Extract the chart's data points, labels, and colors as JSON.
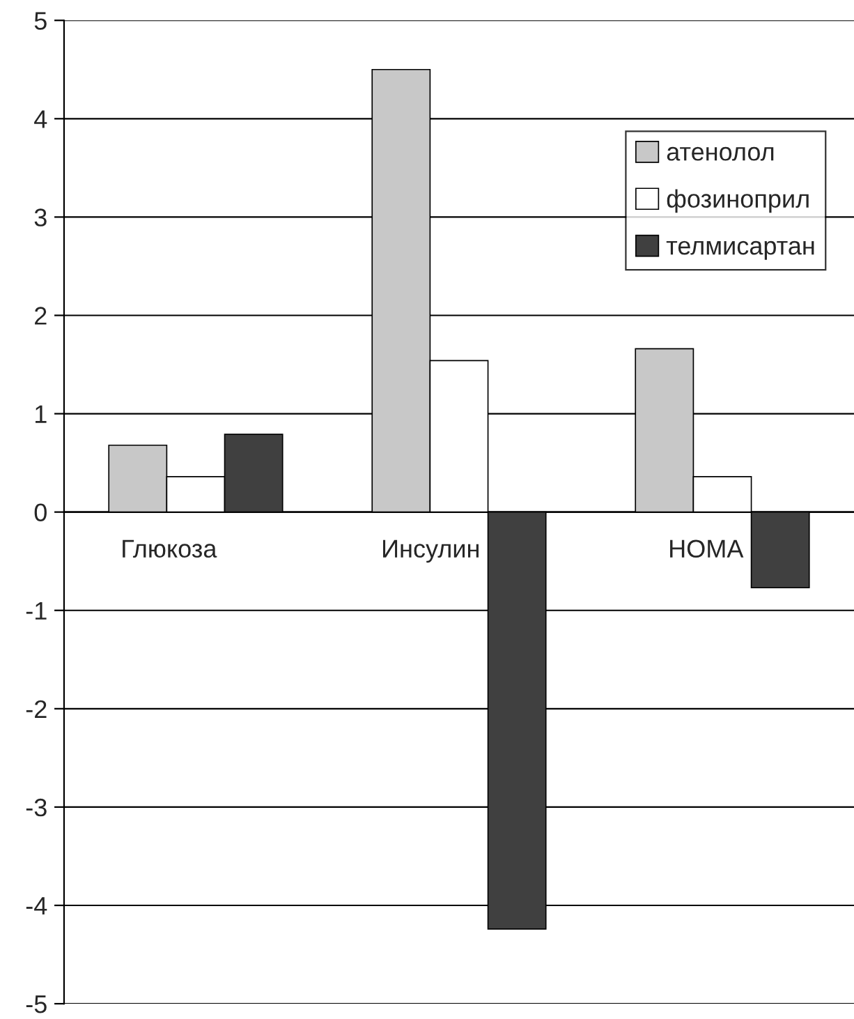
{
  "chart_data": {
    "type": "bar",
    "categories": [
      "Глюкоза",
      "Инсулин",
      "HOMA"
    ],
    "series": [
      {
        "name": "атенолол",
        "color": "#c8c8c8",
        "values": [
          0.68,
          4.5,
          1.66
        ]
      },
      {
        "name": "фозиноприл",
        "color": "#ffffff",
        "values": [
          0.36,
          1.54,
          0.36
        ]
      },
      {
        "name": "телмисартан",
        "color": "#404040",
        "values": [
          0.79,
          -4.24,
          -0.77
        ]
      }
    ],
    "ylim": [
      -5,
      5
    ],
    "yticks": [
      -5,
      -4,
      -3,
      -2,
      -1,
      0,
      1,
      2,
      3,
      4,
      5
    ],
    "grid": "y",
    "legend": "top right"
  }
}
